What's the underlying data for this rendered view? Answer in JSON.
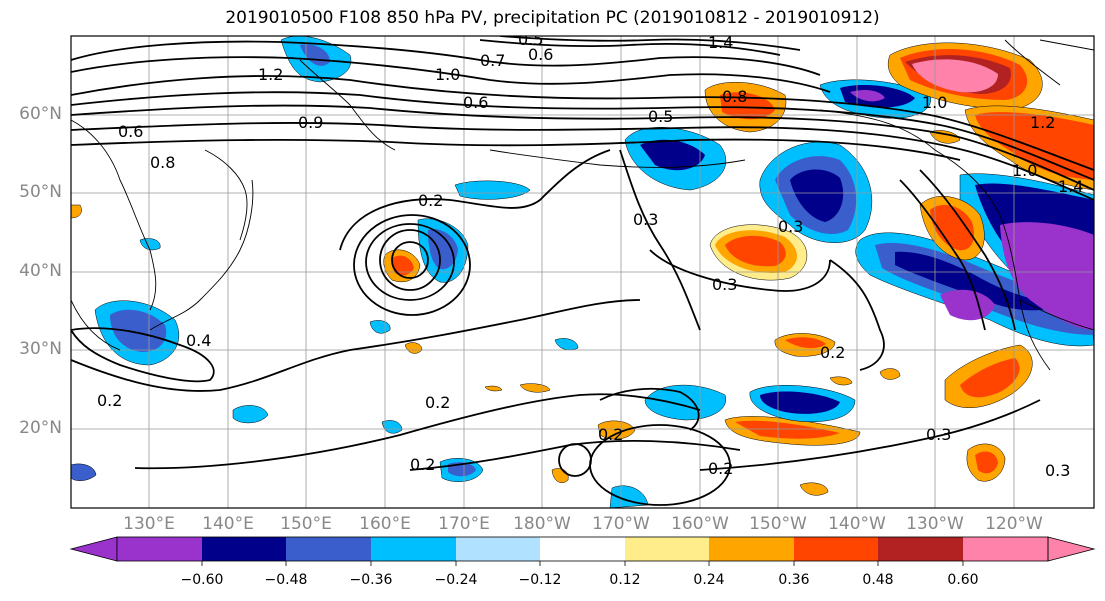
{
  "title": "2019010500 F108 850 hPa PV, precipitation PC (2019010812 - 2019010912)",
  "map": {
    "lat_ticks": [
      "60°N",
      "50°N",
      "40°N",
      "30°N",
      "20°N"
    ],
    "lon_ticks": [
      "130°E",
      "140°E",
      "150°E",
      "160°E",
      "170°E",
      "180°W",
      "170°W",
      "160°W",
      "150°W",
      "140°W",
      "130°W",
      "120°W"
    ],
    "contour_labels": [
      "1.4",
      "0.5",
      "0.7",
      "0.6",
      "1.0",
      "1.2",
      "0.8",
      "0.6",
      "0.5",
      "0.9",
      "0.6",
      "0.8",
      "0.2",
      "0.3",
      "0.3",
      "0.3",
      "0.4",
      "0.2",
      "0.2",
      "0.2",
      "0.2",
      "0.2",
      "0.2",
      "0.3",
      "1.0",
      "1.2",
      "1.4",
      "1.0",
      "0.3"
    ],
    "coastline_color": "#000000",
    "grid_color": "#999999"
  },
  "colorbar": {
    "tick_labels": [
      "−0.60",
      "−0.48",
      "−0.36",
      "−0.24",
      "−0.12",
      "0.12",
      "0.24",
      "0.36",
      "0.48",
      "0.60"
    ],
    "colors": [
      "#9933cc",
      "#00008b",
      "#3a5fcd",
      "#00bfff",
      "#b0e2ff",
      "#ffffff",
      "#ffec8b",
      "#ffa500",
      "#ff4500",
      "#b22222",
      "#ff82ab"
    ]
  }
}
